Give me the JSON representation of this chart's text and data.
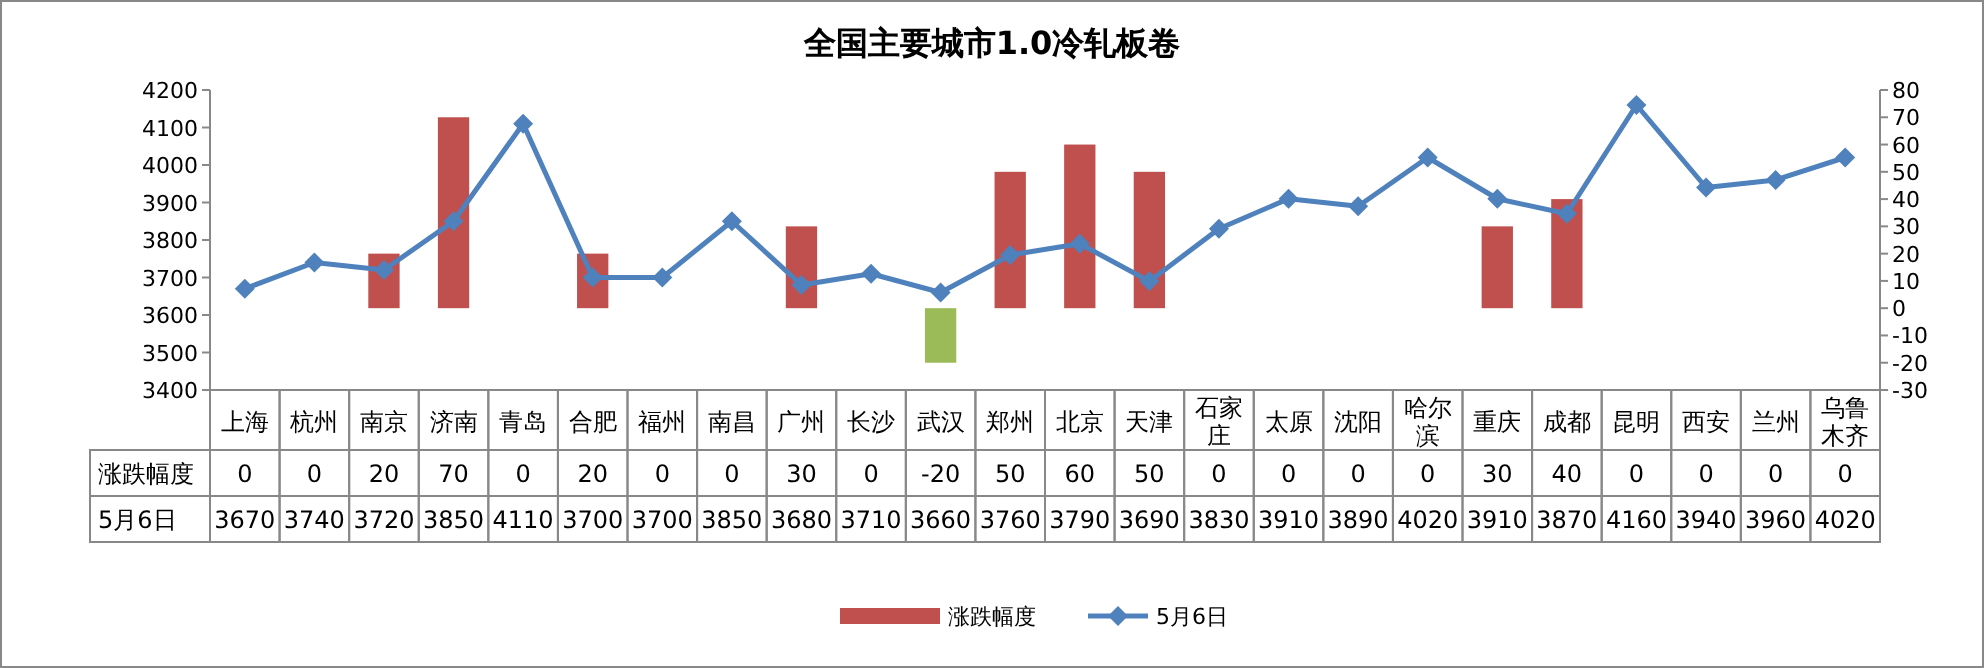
{
  "chart_data": {
    "type": "bar",
    "title": "全国主要城市1.0冷轧板卷",
    "categories": [
      "上海",
      "杭州",
      "南京",
      "济南",
      "青岛",
      "合肥",
      "福州",
      "南昌",
      "广州",
      "长沙",
      "武汉",
      "郑州",
      "北京",
      "天津",
      "石家庄",
      "太原",
      "沈阳",
      "哈尔滨",
      "重庆",
      "成都",
      "昆明",
      "西安",
      "兰州",
      "乌鲁木齐"
    ],
    "series": [
      {
        "name": "涨跌幅度",
        "type": "bar",
        "axis": "y2",
        "color": "#c0504d",
        "colors": [
          "#c0504d",
          "#c0504d",
          "#c0504d",
          "#c0504d",
          "#c0504d",
          "#c0504d",
          "#c0504d",
          "#c0504d",
          "#c0504d",
          "#c0504d",
          "#9bbb59",
          "#c0504d",
          "#c0504d",
          "#c0504d",
          "#c0504d",
          "#c0504d",
          "#c0504d",
          "#c0504d",
          "#c0504d",
          "#c0504d",
          "#c0504d",
          "#c0504d",
          "#c0504d",
          "#c0504d"
        ],
        "values": [
          0,
          0,
          20,
          70,
          0,
          20,
          0,
          0,
          30,
          0,
          -20,
          50,
          60,
          50,
          0,
          0,
          0,
          0,
          30,
          40,
          0,
          0,
          0,
          0
        ]
      },
      {
        "name": "5月6日",
        "type": "line",
        "color": "#4f81bd",
        "values": [
          3670,
          3740,
          3720,
          3850,
          4110,
          3700,
          3700,
          3850,
          3680,
          3710,
          3660,
          3760,
          3790,
          3690,
          3830,
          3910,
          3890,
          4020,
          3910,
          3870,
          4160,
          3940,
          3960,
          4020
        ]
      }
    ],
    "ylim": [
      3400,
      4200
    ],
    "yticks": [
      3400,
      3500,
      3600,
      3700,
      3800,
      3900,
      4000,
      4100,
      4200
    ],
    "y2lim": [
      -30,
      80
    ],
    "y2ticks": [
      -30,
      -20,
      -10,
      0,
      10,
      20,
      30,
      40,
      50,
      60,
      70,
      80
    ],
    "marker": "diamond",
    "data_labels": true,
    "legend": "bottom"
  }
}
